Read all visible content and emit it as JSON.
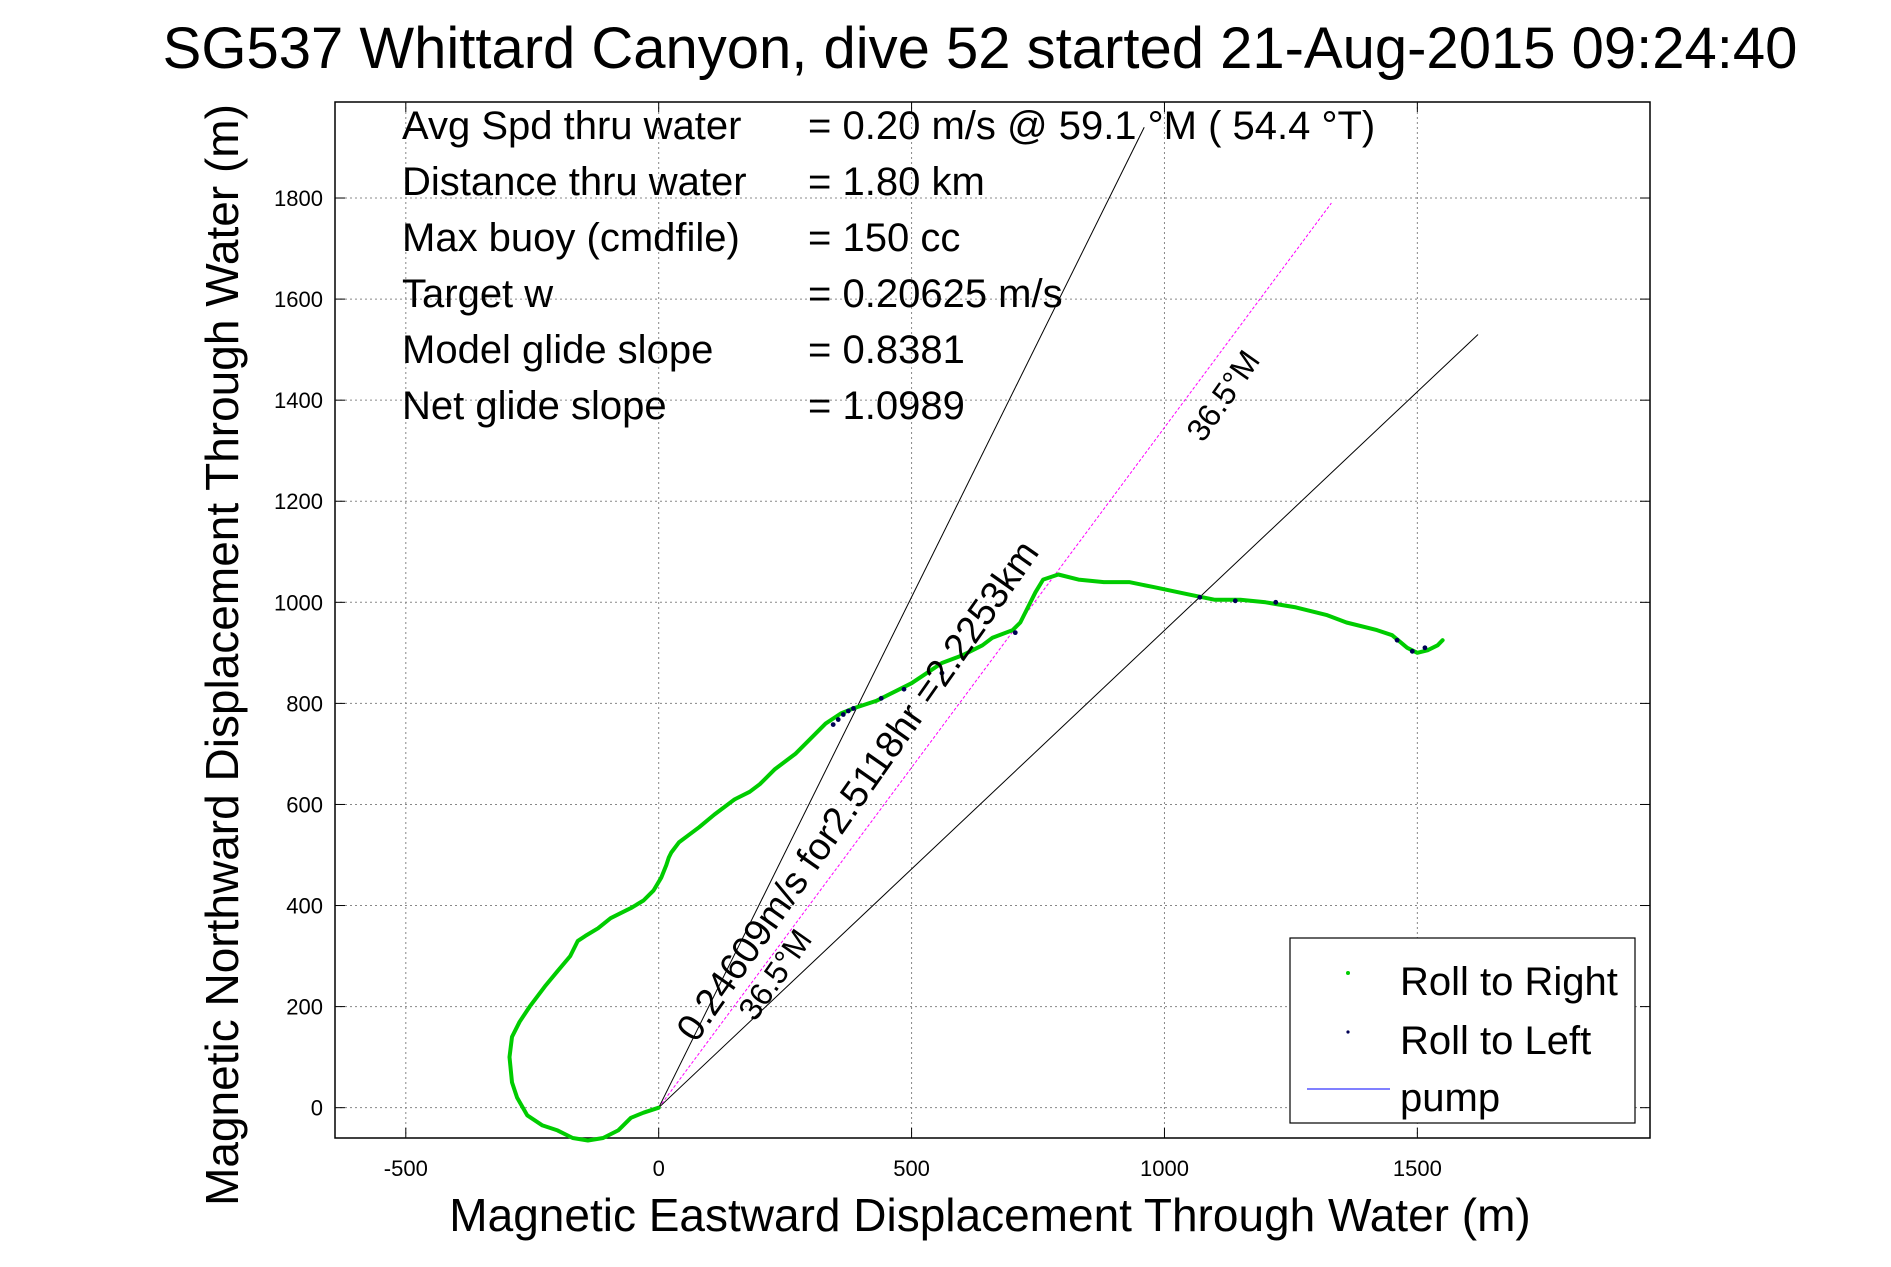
{
  "chart_data": {
    "type": "line",
    "title": "SG537 Whittard Canyon, dive 52 started 21-Aug-2015 09:24:40",
    "xlabel": "Magnetic Eastward Displacement Through Water (m)",
    "ylabel": "Magnetic Northward Displacement Through Water (m)",
    "xlim": [
      -640,
      1960
    ],
    "ylim": [
      -60,
      1990
    ],
    "xticks": [
      -500,
      0,
      500,
      1000,
      1500
    ],
    "yticks": [
      0,
      200,
      400,
      600,
      800,
      1000,
      1200,
      1400,
      1600,
      1800
    ],
    "grid": true,
    "legend_position": "bottom-right",
    "stats": [
      {
        "label": "Avg Spd thru water",
        "value": "=  0.20 m/s @  59.1 °M ( 54.4 °T)"
      },
      {
        "label": "Distance thru water",
        "value": "=  1.80 km"
      },
      {
        "label": "Max buoy (cmdfile)",
        "value": "= 150 cc"
      },
      {
        "label": "Target w",
        "value": "= 0.20625 m/s"
      },
      {
        "label": "Model glide slope",
        "value": "= 0.8381"
      },
      {
        "label": "Net glide slope",
        "value": "= 1.0989"
      }
    ],
    "annotations": {
      "course_text": "0.24609m/s for2.5118hr =2.2253km",
      "lower_angle_text": "36.5°M",
      "upper_angle_text": "36.5°M"
    },
    "reference_lines": [
      {
        "kind": "heading",
        "x": [
          0,
          1330
        ],
        "y": [
          0,
          1790
        ],
        "color": "#ff00ff"
      },
      {
        "kind": "cone",
        "x": [
          0,
          960
        ],
        "y": [
          0,
          1940
        ],
        "color": "#000000"
      },
      {
        "kind": "cone",
        "x": [
          0,
          1620
        ],
        "y": [
          0,
          1530
        ],
        "color": "#000000"
      }
    ],
    "series": [
      {
        "name": "Roll to Right",
        "color": "#00cc00",
        "x": [
          0,
          -30,
          -55,
          -80,
          -110,
          -140,
          -170,
          -200,
          -230,
          -260,
          -280,
          -290,
          -295,
          -290,
          -275,
          -255,
          -225,
          -200,
          -175,
          -160,
          -145,
          -120,
          -95,
          -75,
          -55,
          -30,
          -10,
          5,
          15,
          20,
          25,
          40,
          60,
          80,
          110,
          150,
          180,
          200,
          230,
          270,
          300,
          330,
          360,
          385,
          400,
          430,
          470,
          500,
          530,
          560,
          600,
          640,
          660,
          700,
          715,
          730,
          745,
          760,
          790,
          830,
          880,
          930,
          980,
          1050,
          1100,
          1150,
          1200,
          1260,
          1320,
          1360,
          1420,
          1450,
          1480,
          1500,
          1520,
          1540,
          1550
        ],
        "y": [
          0,
          -10,
          -20,
          -45,
          -60,
          -65,
          -60,
          -45,
          -35,
          -15,
          20,
          50,
          100,
          140,
          170,
          200,
          240,
          270,
          300,
          330,
          340,
          355,
          375,
          385,
          395,
          410,
          430,
          455,
          480,
          495,
          505,
          525,
          540,
          555,
          580,
          610,
          625,
          640,
          670,
          700,
          730,
          760,
          780,
          790,
          795,
          805,
          825,
          840,
          860,
          880,
          895,
          915,
          930,
          945,
          960,
          990,
          1020,
          1045,
          1055,
          1045,
          1040,
          1040,
          1030,
          1015,
          1005,
          1005,
          1000,
          990,
          975,
          960,
          945,
          935,
          910,
          900,
          905,
          915,
          925
        ]
      },
      {
        "name": "Roll to Left",
        "color": "#000055",
        "x": [
          345,
          355,
          365,
          375,
          385,
          440,
          485,
          560,
          705,
          1070,
          1140,
          1220,
          1460,
          1490,
          1515
        ],
        "y": [
          758,
          768,
          778,
          785,
          790,
          810,
          828,
          860,
          940,
          1010,
          1003,
          1000,
          925,
          903,
          910
        ]
      },
      {
        "name": "pump",
        "color": "#0000ff",
        "x": [],
        "y": []
      }
    ]
  }
}
